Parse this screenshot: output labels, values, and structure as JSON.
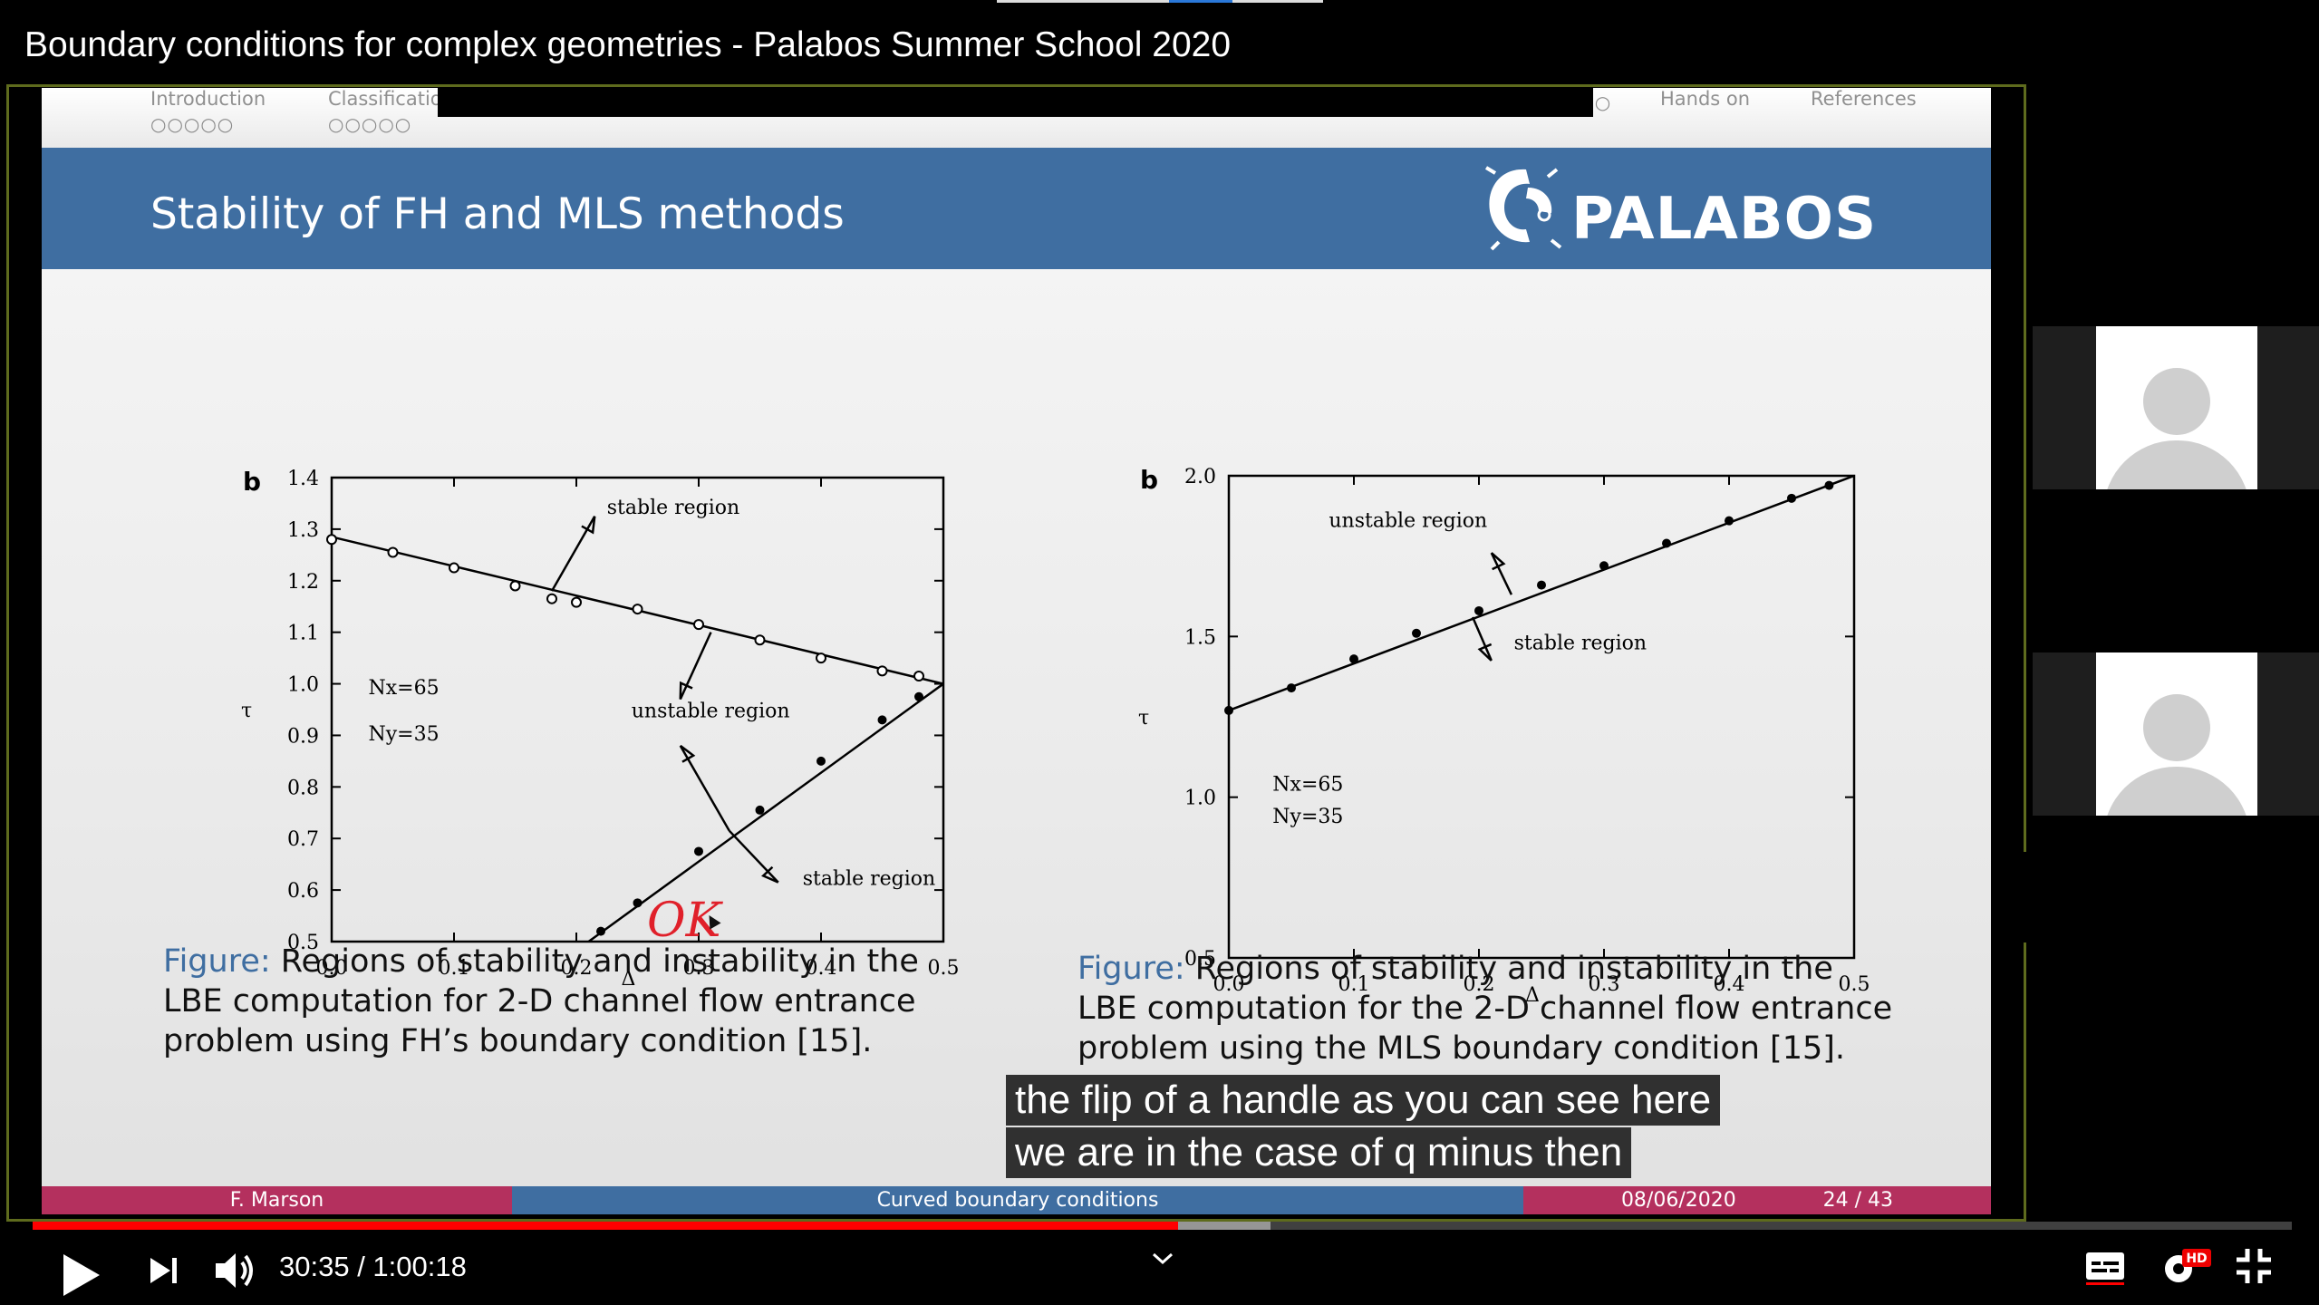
{
  "video": {
    "title": "Boundary conditions for complex geometries - Palabos Summer School 2020",
    "time_current": "30:35",
    "time_separator": " / ",
    "time_total": "1:00:18",
    "progress": 0.507,
    "buffered": 0.548
  },
  "slide": {
    "nav": [
      {
        "label": "Introduction",
        "dots": "○○○○○"
      },
      {
        "label": "Classificatio",
        "dots": "○○○○○"
      },
      {
        "label": "",
        "dots": "○○○○○○○"
      },
      {
        "label": "",
        "dots": "○○○○●○○"
      },
      {
        "label": "",
        "dots": "○○"
      },
      {
        "label": "",
        "dots": "○○"
      },
      {
        "label": "",
        "dots": "○○○"
      },
      {
        "label": "",
        "dots": "○○○○○"
      },
      {
        "label": "Hands on",
        "dots": ""
      },
      {
        "label": "References",
        "dots": ""
      }
    ],
    "header_title": "Stability of FH and MLS methods",
    "logo_text": "PALABOS",
    "caption_left": {
      "prefix": "Figure:",
      "line1": " Regions of stability and instability in the",
      "line2": "LBE computation for 2-D channel flow entrance",
      "line3": "problem using FH’s boundary condition [15]."
    },
    "caption_right": {
      "prefix": "Figure:",
      "line1": " Regions of stability and instability in the",
      "line2": "LBE computation for the 2-D channel flow entrance",
      "line3": "problem using the MLS boundary condition [15]."
    },
    "annotation": "OK",
    "footer": {
      "author": "F. Marson",
      "talk": "Curved boundary conditions",
      "date": "08/06/2020",
      "page": "24 / 43"
    }
  },
  "subtitles": [
    "the flip of a handle as you can see here",
    "we are in the case of q minus then"
  ],
  "controls": {
    "play_icon": "play-icon",
    "next_icon": "next-icon",
    "volume_icon": "volume-icon",
    "captions_icon": "captions-icon",
    "settings_icon": "settings-hd-icon",
    "exit_fullscreen_icon": "exit-fullscreen-icon",
    "hd_badge": "HD"
  },
  "chart_data": [
    {
      "type": "scatter",
      "panel_label": "b",
      "xlabel": "Δ",
      "ylabel": "τ",
      "xlim": [
        0.0,
        0.5
      ],
      "ylim": [
        0.5,
        1.4
      ],
      "x_ticks": [
        "0.0",
        "0.1",
        "0.2",
        "0.3",
        "0.4",
        "0.5"
      ],
      "y_ticks": [
        "0.5",
        "0.6",
        "0.7",
        "0.8",
        "0.9",
        "1.0",
        "1.1",
        "1.2",
        "1.3",
        "1.4"
      ],
      "annotations": [
        "stable region",
        "unstable region",
        "stable region",
        "Nx=65",
        "Ny=35"
      ],
      "series": [
        {
          "marker": "open-circle",
          "line": [
            [
              0.0,
              1.285
            ],
            [
              0.5,
              1.0
            ]
          ],
          "points": [
            [
              0.0,
              1.28
            ],
            [
              0.05,
              1.255
            ],
            [
              0.1,
              1.225
            ],
            [
              0.15,
              1.19
            ],
            [
              0.18,
              1.165
            ],
            [
              0.2,
              1.158
            ],
            [
              0.25,
              1.145
            ],
            [
              0.3,
              1.115
            ],
            [
              0.35,
              1.085
            ],
            [
              0.4,
              1.05
            ],
            [
              0.45,
              1.025
            ],
            [
              0.48,
              1.015
            ]
          ]
        },
        {
          "marker": "filled-dot",
          "line": [
            [
              0.21,
              0.5
            ],
            [
              0.5,
              1.0
            ]
          ],
          "points": [
            [
              0.22,
              0.52
            ],
            [
              0.25,
              0.575
            ],
            [
              0.3,
              0.675
            ],
            [
              0.35,
              0.755
            ],
            [
              0.4,
              0.85
            ],
            [
              0.45,
              0.93
            ],
            [
              0.48,
              0.975
            ]
          ]
        }
      ]
    },
    {
      "type": "scatter",
      "panel_label": "b",
      "xlabel": "Δ",
      "ylabel": "τ",
      "xlim": [
        0.0,
        0.5
      ],
      "ylim": [
        0.5,
        2.0
      ],
      "x_ticks": [
        "0.0",
        "0.1",
        "0.2",
        "0.3",
        "0.4",
        "0.5"
      ],
      "y_ticks": [
        "0.5",
        "1.0",
        "1.5",
        "2.0"
      ],
      "annotations": [
        "unstable region",
        "stable region",
        "Nx=65",
        "Ny=35"
      ],
      "series": [
        {
          "marker": "filled-dot",
          "line": [
            [
              0.0,
              1.27
            ],
            [
              0.5,
              2.0
            ]
          ],
          "points": [
            [
              0.0,
              1.27
            ],
            [
              0.05,
              1.34
            ],
            [
              0.1,
              1.43
            ],
            [
              0.15,
              1.51
            ],
            [
              0.2,
              1.58
            ],
            [
              0.25,
              1.66
            ],
            [
              0.3,
              1.72
            ],
            [
              0.35,
              1.79
            ],
            [
              0.4,
              1.86
            ],
            [
              0.45,
              1.93
            ],
            [
              0.48,
              1.97
            ]
          ]
        }
      ]
    }
  ]
}
